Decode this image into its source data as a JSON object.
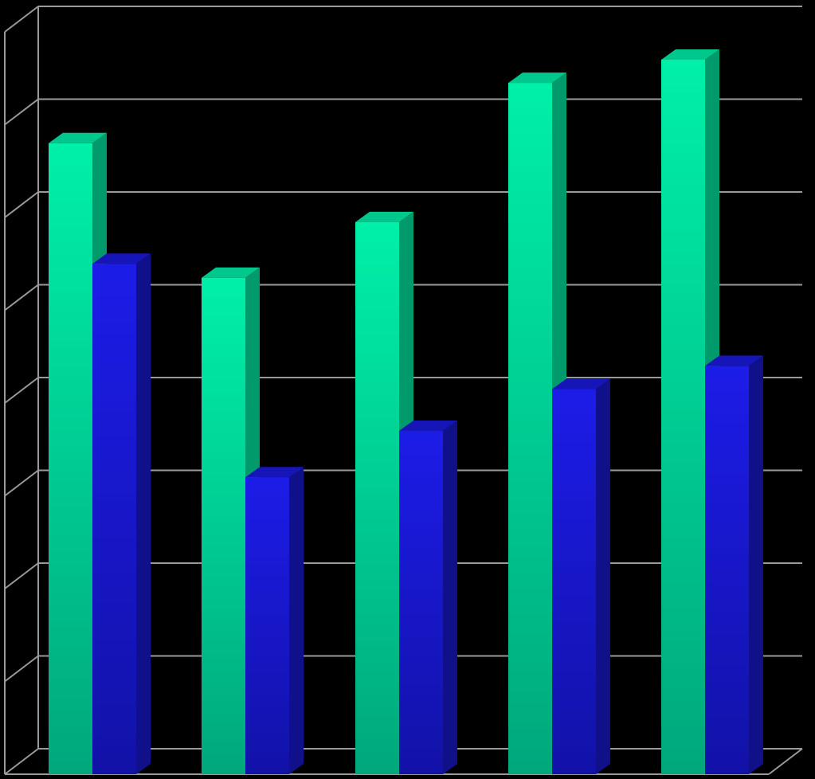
{
  "chart_data": {
    "type": "bar",
    "style": "3d-clustered-column",
    "categories": [
      "",
      "",
      "",
      "",
      ""
    ],
    "series": [
      {
        "color": "#00e8a0",
        "values": [
          6.8,
          5.35,
          5.95,
          7.45,
          7.7
        ]
      },
      {
        "color": "#1818e0",
        "values": [
          5.5,
          3.2,
          3.7,
          4.15,
          4.4
        ]
      }
    ],
    "ylim": [
      0,
      8
    ],
    "grid": true,
    "legend": "none",
    "background": "#000000",
    "gridline_color": "#9a9a9a"
  }
}
